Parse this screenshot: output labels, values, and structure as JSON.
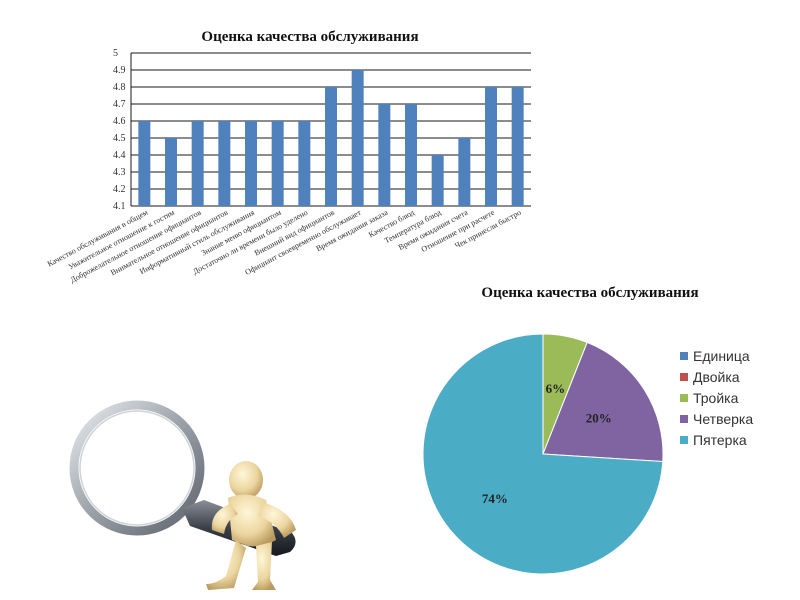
{
  "colors": {
    "bar": "#4F81BD",
    "grid": "#1a1a1a",
    "axis_text": "#333333",
    "title": "#111111"
  },
  "chart_data": [
    {
      "type": "bar",
      "title": "Оценка качества обслуживания",
      "categories": [
        "Качество обслуживания в общем",
        "Уважительное отношение к гостям",
        "Доброжелательное отношение официантов",
        "Внимательное отношение официантов",
        "Информативный стиль обслуживания",
        "Знание меню официантом",
        "Достаточно ли времени было уделено",
        "Внешний вид официантов",
        "Официант своевременно обслуживает",
        "Время ожидания заказа",
        "Качество блюд",
        "Температура блюд",
        "Время ожидания счета",
        "Отношение при расчете",
        "Чек принесли быстро"
      ],
      "values": [
        4.6,
        4.5,
        4.6,
        4.6,
        4.6,
        4.6,
        4.6,
        4.8,
        4.9,
        4.7,
        4.7,
        4.4,
        4.5,
        4.8,
        4.8
      ],
      "yticks": [
        "4.1",
        "4.2",
        "4.3",
        "4.4",
        "4.5",
        "4.6",
        "4.7",
        "4.8",
        "4.9",
        "5"
      ],
      "ylim": [
        4.1,
        5
      ],
      "grid": true
    },
    {
      "type": "pie",
      "title": "Оценка качества обслуживания",
      "legend_position": "right",
      "slices": [
        {
          "name": "Единица",
          "value": 0,
          "color": "#4F81BD",
          "label": ""
        },
        {
          "name": "Двойка",
          "value": 0,
          "color": "#C0504D",
          "label": ""
        },
        {
          "name": "Тройка",
          "value": 6,
          "color": "#9BBB59",
          "label": "6%"
        },
        {
          "name": "Четверка",
          "value": 20,
          "color": "#8064A2",
          "label": "20%"
        },
        {
          "name": "Пятерка",
          "value": 74,
          "color": "#4BACC6",
          "label": "74%"
        }
      ]
    }
  ],
  "illustration": {
    "icon": "magnifier-figure-icon"
  }
}
